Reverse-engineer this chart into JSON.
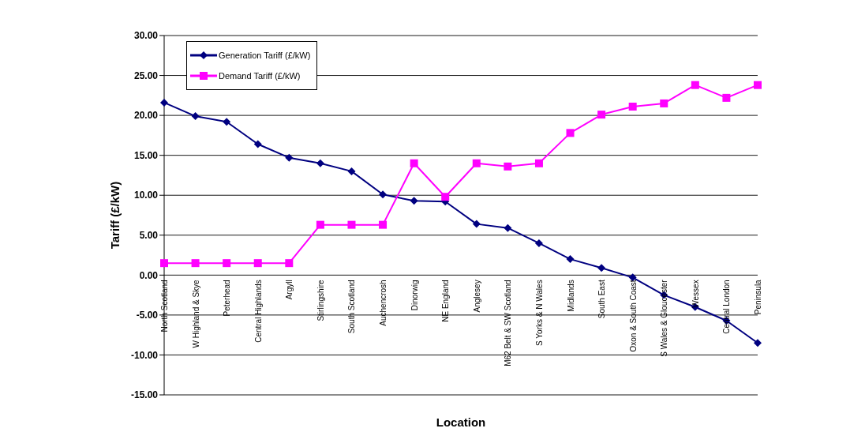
{
  "chart_data": {
    "type": "line",
    "xlabel": "Location",
    "ylabel": "Tariff (£/kW)",
    "categories": [
      "North Scotland",
      "W Highland & Skye",
      "Peterhead",
      "Central Highlands",
      "Argyll",
      "Stirlingshire",
      "South Scotland",
      "Auchencrosh",
      "Dinorwig",
      "NE England",
      "Anglesey",
      "M62 Belt & SW Scotland",
      "S Yorks & N Wales",
      "Midlands",
      "South East",
      "Oxon & South Coast",
      "S Wales & Gloucester",
      "Wessex",
      "Central London",
      "Peninsula"
    ],
    "series": [
      {
        "name": "Generation Tariff (£/kW)",
        "color": "#000080",
        "marker": "diamond",
        "values": [
          21.6,
          19.9,
          19.2,
          16.4,
          14.7,
          14.0,
          13.0,
          10.1,
          9.3,
          9.2,
          6.4,
          5.9,
          4.0,
          2.0,
          0.9,
          -0.3,
          -2.5,
          -4.0,
          -5.7,
          -8.5
        ]
      },
      {
        "name": "Demand Tariff (£/kW)",
        "color": "#ff00ff",
        "marker": "square",
        "values": [
          1.5,
          1.5,
          1.5,
          1.5,
          1.5,
          6.3,
          6.3,
          6.3,
          14.0,
          9.8,
          14.0,
          13.6,
          14.0,
          17.8,
          20.1,
          21.1,
          21.5,
          23.8,
          22.2,
          23.8
        ]
      }
    ],
    "ylim": [
      -15,
      30
    ],
    "yticks": [
      {
        "value": -15,
        "label": "-15.00"
      },
      {
        "value": -10,
        "label": "-10.00"
      },
      {
        "value": -5,
        "label": "-5.00"
      },
      {
        "value": 0,
        "label": "0.00"
      },
      {
        "value": 5,
        "label": "5.00"
      },
      {
        "value": 10,
        "label": "10.00"
      },
      {
        "value": 15,
        "label": "15.00"
      },
      {
        "value": 20,
        "label": "20.00"
      },
      {
        "value": 25,
        "label": "25.00"
      },
      {
        "value": 30,
        "label": "30.00"
      }
    ],
    "grid": "y",
    "legend": "top left"
  }
}
